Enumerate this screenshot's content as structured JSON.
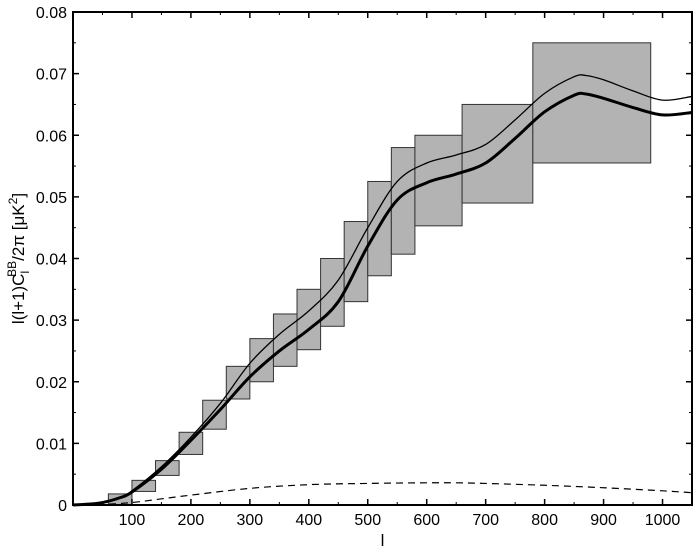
{
  "chart_data": {
    "type": "line",
    "title": "",
    "xlabel": "l",
    "ylabel_parts": {
      "pre": "l(l+1)C",
      "sub": "l",
      "sup": "BB",
      "post": "/2π [μK",
      "unit_sup": "2",
      "close": "]"
    },
    "xlim": [
      0,
      1050
    ],
    "ylim": [
      0,
      0.08
    ],
    "xticks": [
      100,
      200,
      300,
      400,
      500,
      600,
      700,
      800,
      900,
      1000
    ],
    "yticks": [
      0,
      0.01,
      0.02,
      0.03,
      0.04,
      0.05,
      0.06,
      0.07,
      0.08
    ],
    "ytick_labels": [
      "0",
      "0.01",
      "0.02",
      "0.03",
      "0.04",
      "0.05",
      "0.06",
      "0.07",
      "0.08"
    ],
    "grid": false,
    "bins": [
      {
        "x0": 60,
        "x1": 100,
        "y0": 0.0,
        "y1": 0.0018
      },
      {
        "x0": 100,
        "x1": 140,
        "y0": 0.0022,
        "y1": 0.004
      },
      {
        "x0": 140,
        "x1": 180,
        "y0": 0.0048,
        "y1": 0.0072
      },
      {
        "x0": 180,
        "x1": 220,
        "y0": 0.0082,
        "y1": 0.0118
      },
      {
        "x0": 220,
        "x1": 260,
        "y0": 0.0123,
        "y1": 0.017
      },
      {
        "x0": 260,
        "x1": 300,
        "y0": 0.0172,
        "y1": 0.0225
      },
      {
        "x0": 300,
        "x1": 340,
        "y0": 0.02,
        "y1": 0.027
      },
      {
        "x0": 340,
        "x1": 380,
        "y0": 0.0225,
        "y1": 0.031
      },
      {
        "x0": 380,
        "x1": 420,
        "y0": 0.0252,
        "y1": 0.035
      },
      {
        "x0": 420,
        "x1": 460,
        "y0": 0.029,
        "y1": 0.04
      },
      {
        "x0": 460,
        "x1": 500,
        "y0": 0.033,
        "y1": 0.046
      },
      {
        "x0": 500,
        "x1": 540,
        "y0": 0.0372,
        "y1": 0.0525
      },
      {
        "x0": 540,
        "x1": 580,
        "y0": 0.0407,
        "y1": 0.058
      },
      {
        "x0": 580,
        "x1": 660,
        "y0": 0.0453,
        "y1": 0.06
      },
      {
        "x0": 660,
        "x1": 780,
        "y0": 0.049,
        "y1": 0.065
      },
      {
        "x0": 780,
        "x1": 980,
        "y0": 0.0555,
        "y1": 0.075
      }
    ],
    "series": [
      {
        "style": "thick",
        "x": [
          0,
          20,
          50,
          80,
          100,
          150,
          200,
          250,
          300,
          350,
          400,
          450,
          500,
          550,
          600,
          650,
          700,
          750,
          800,
          850,
          870,
          900,
          950,
          1000,
          1050
        ],
        "y": [
          0,
          0.0001,
          0.0004,
          0.0012,
          0.0021,
          0.0058,
          0.0105,
          0.0155,
          0.0208,
          0.025,
          0.0285,
          0.033,
          0.042,
          0.0495,
          0.0523,
          0.0537,
          0.0555,
          0.0595,
          0.0638,
          0.0665,
          0.0667,
          0.066,
          0.0645,
          0.0633,
          0.0637
        ]
      },
      {
        "style": "thin",
        "x": [
          0,
          20,
          50,
          80,
          100,
          150,
          200,
          250,
          300,
          350,
          400,
          450,
          500,
          550,
          600,
          650,
          700,
          750,
          800,
          850,
          870,
          900,
          950,
          1000,
          1050
        ],
        "y": [
          0,
          0.0001,
          0.0005,
          0.0013,
          0.0023,
          0.0062,
          0.011,
          0.0165,
          0.023,
          0.0277,
          0.0315,
          0.0365,
          0.045,
          0.0525,
          0.0555,
          0.0568,
          0.0585,
          0.0625,
          0.0668,
          0.0695,
          0.0697,
          0.069,
          0.0672,
          0.0657,
          0.0663
        ]
      },
      {
        "style": "dashed",
        "x": [
          0,
          50,
          100,
          150,
          200,
          300,
          400,
          500,
          600,
          650,
          700,
          800,
          900,
          1000,
          1050
        ],
        "y": [
          0,
          0.0001,
          0.0004,
          0.001,
          0.0016,
          0.0027,
          0.0033,
          0.0035,
          0.0036,
          0.0036,
          0.0035,
          0.0032,
          0.0028,
          0.0023,
          0.002
        ]
      }
    ],
    "colors": {
      "box_fill": "#b3b3b3",
      "box_stroke": "#333333",
      "line": "#000000",
      "axis": "#000000"
    }
  }
}
